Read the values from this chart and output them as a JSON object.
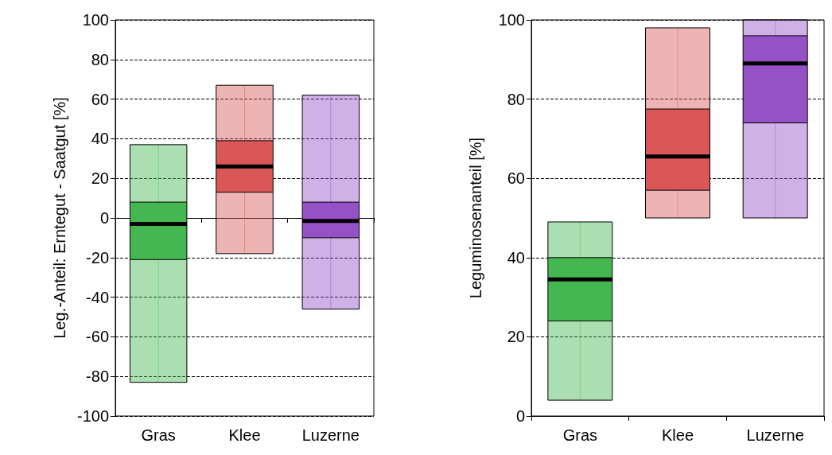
{
  "chart_data": [
    {
      "type": "box",
      "categories": [
        "Gras",
        "Klee",
        "Luzerne"
      ],
      "ylabel": "Leg.-Anteil: Erntegut - Saatgut [%]",
      "ylim": [
        -100,
        100
      ],
      "yticks": [
        -100,
        -80,
        -60,
        -40,
        -20,
        0,
        20,
        40,
        60,
        80,
        100
      ],
      "grid": "y",
      "colors": [
        "#45b751",
        "#d95757",
        "#9552c6"
      ],
      "boxes": [
        {
          "low": -83,
          "q1": -21,
          "median": -3,
          "q3": 8,
          "high": 37
        },
        {
          "low": -18,
          "q1": 13,
          "median": 26,
          "q3": 39,
          "high": 67
        },
        {
          "low": -46,
          "q1": -10,
          "median": -1.5,
          "q3": 8,
          "high": 62
        }
      ]
    },
    {
      "type": "box",
      "categories": [
        "Gras",
        "Klee",
        "Luzerne"
      ],
      "ylabel": "Leguminosenanteil [%]",
      "ylim": [
        0,
        100
      ],
      "yticks": [
        0,
        20,
        40,
        60,
        80,
        100
      ],
      "grid": "y",
      "colors": [
        "#45b751",
        "#d95757",
        "#9552c6"
      ],
      "boxes": [
        {
          "low": 4,
          "q1": 24,
          "median": 34.5,
          "q3": 40,
          "high": 49
        },
        {
          "low": 50,
          "q1": 57,
          "median": 65.5,
          "q3": 77.5,
          "high": 98
        },
        {
          "low": 50,
          "q1": 74,
          "median": 89,
          "q3": 96,
          "high": 100
        }
      ]
    }
  ]
}
